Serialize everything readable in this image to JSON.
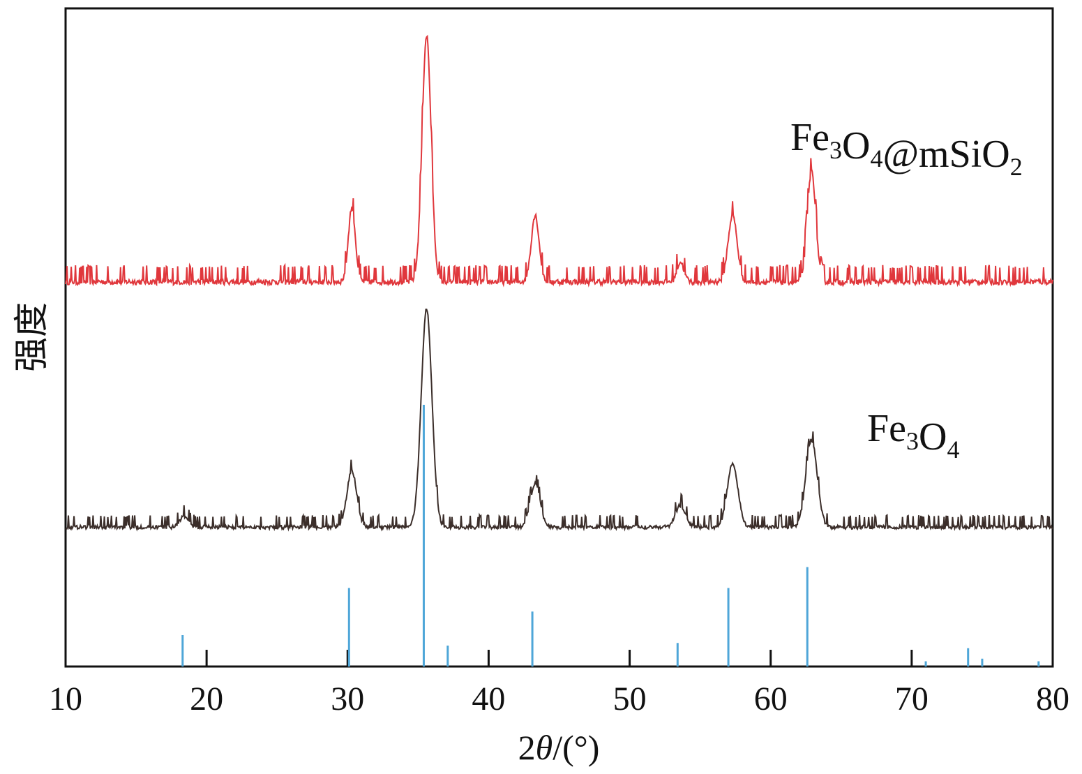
{
  "chart_data": {
    "type": "line",
    "xlabel": "2θ/(°)",
    "ylabel": "强度",
    "xlim": [
      10,
      80
    ],
    "xticks": [
      10,
      20,
      30,
      40,
      50,
      60,
      70,
      80
    ],
    "xtick_labels": [
      "10",
      "20",
      "30",
      "40",
      "50",
      "60",
      "70",
      "80"
    ],
    "y_ticks_shown": false,
    "grid": false,
    "series": [
      {
        "name": "Fe3O4@mSiO2",
        "label_main": "Fe",
        "label_parts": [
          {
            "text": "Fe",
            "sub": false
          },
          {
            "text": "3",
            "sub": true
          },
          {
            "text": "O",
            "sub": false
          },
          {
            "text": "4",
            "sub": true
          },
          {
            "text": "@mSiO",
            "sub": false
          },
          {
            "text": "2",
            "sub": true
          }
        ],
        "color": "#e0373c",
        "baseline": 0.0,
        "noise": 0.05,
        "peaks": [
          {
            "x": 30.3,
            "height": 0.3,
            "width": 0.25
          },
          {
            "x": 35.6,
            "height": 1.0,
            "width": 0.32
          },
          {
            "x": 43.3,
            "height": 0.27,
            "width": 0.28
          },
          {
            "x": 53.6,
            "height": 0.08,
            "width": 0.25
          },
          {
            "x": 57.3,
            "height": 0.27,
            "width": 0.32
          },
          {
            "x": 62.9,
            "height": 0.45,
            "width": 0.3
          }
        ]
      },
      {
        "name": "Fe3O4",
        "label_parts": [
          {
            "text": "Fe",
            "sub": false
          },
          {
            "text": "3",
            "sub": true
          },
          {
            "text": "O",
            "sub": false
          },
          {
            "text": "4",
            "sub": true
          }
        ],
        "color": "#3b2e2a",
        "baseline": 0.0,
        "noise": 0.04,
        "peaks": [
          {
            "x": 18.4,
            "height": 0.05,
            "width": 0.3
          },
          {
            "x": 30.3,
            "height": 0.26,
            "width": 0.35
          },
          {
            "x": 35.6,
            "height": 1.0,
            "width": 0.38
          },
          {
            "x": 43.3,
            "height": 0.2,
            "width": 0.35
          },
          {
            "x": 53.6,
            "height": 0.1,
            "width": 0.35
          },
          {
            "x": 57.3,
            "height": 0.29,
            "width": 0.38
          },
          {
            "x": 62.9,
            "height": 0.4,
            "width": 0.4
          }
        ]
      }
    ],
    "reference_pattern": {
      "color": "#4ea6d8",
      "lines": [
        {
          "x": 18.3,
          "intensity": 0.12
        },
        {
          "x": 30.1,
          "intensity": 0.3
        },
        {
          "x": 35.4,
          "intensity": 1.0
        },
        {
          "x": 37.1,
          "intensity": 0.08
        },
        {
          "x": 43.1,
          "intensity": 0.21
        },
        {
          "x": 53.4,
          "intensity": 0.09
        },
        {
          "x": 57.0,
          "intensity": 0.3
        },
        {
          "x": 62.6,
          "intensity": 0.38
        },
        {
          "x": 71.0,
          "intensity": 0.02
        },
        {
          "x": 74.0,
          "intensity": 0.07
        },
        {
          "x": 75.0,
          "intensity": 0.03
        },
        {
          "x": 79.0,
          "intensity": 0.02
        }
      ]
    }
  }
}
